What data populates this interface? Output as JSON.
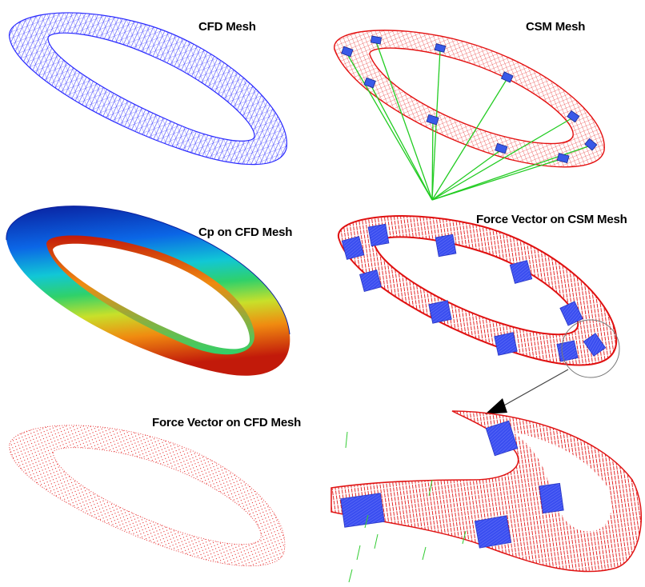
{
  "panels": {
    "cfd_mesh": {
      "label": "CFD Mesh",
      "color": "#2a2aff"
    },
    "csm_mesh": {
      "label": "CSM Mesh",
      "color": "#e41010",
      "beam_color": "#3a5ae8",
      "cable_color": "#22cc22"
    },
    "cp_cfd": {
      "label": "Cp on CFD Mesh",
      "colormap": [
        "#0a1f9e",
        "#0b66e6",
        "#11c7d6",
        "#2fd16a",
        "#c8e02a",
        "#f08a10",
        "#c21a0a"
      ]
    },
    "force_csm": {
      "label": "Force Vector on CSM Mesh",
      "color": "#e01010",
      "beam_color": "#3a4ef0"
    },
    "force_cfd": {
      "label": "Force Vector on CFD Mesh",
      "color": "#e41a1a"
    },
    "zoom_detail": {
      "color": "#e01414",
      "beam_color": "#3a4ef0",
      "arrow_color": "#33cc33"
    }
  }
}
